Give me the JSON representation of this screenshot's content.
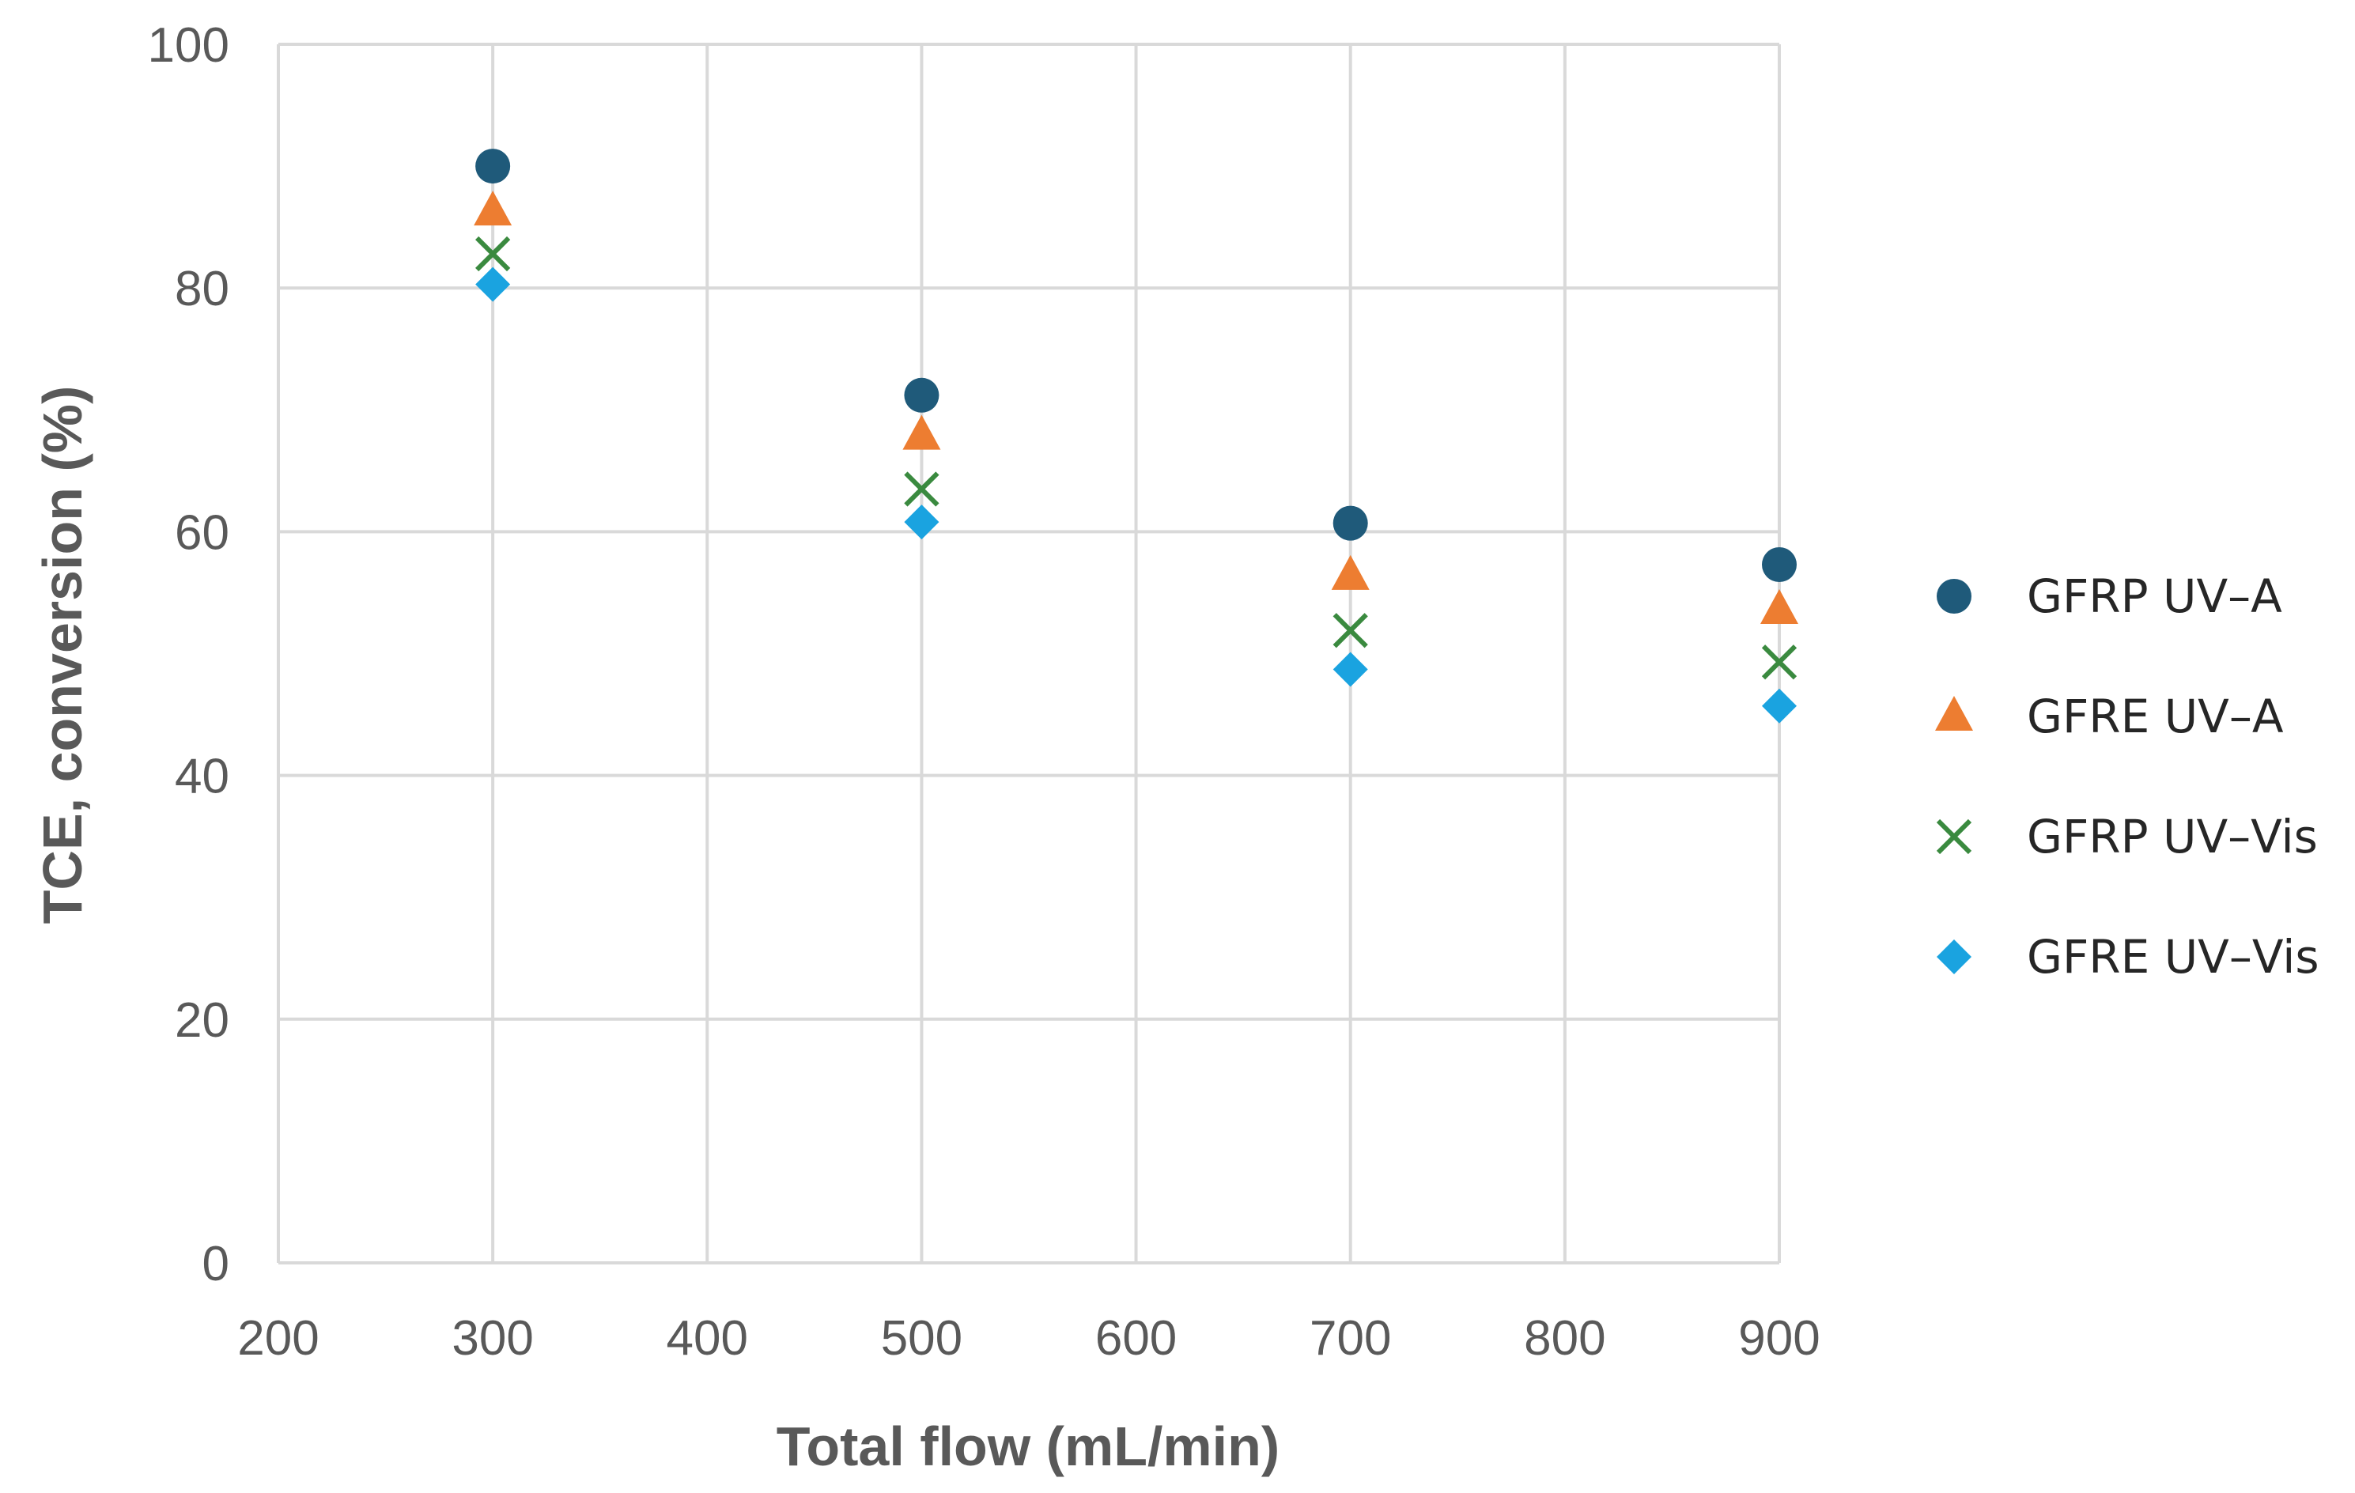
{
  "chart_data": {
    "type": "scatter",
    "xlabel": "Total flow (mL/min)",
    "ylabel": "TCE, conversion (%)",
    "xlim": [
      200,
      900
    ],
    "ylim": [
      0,
      100
    ],
    "xticks": [
      200,
      300,
      400,
      500,
      600,
      700,
      800,
      900
    ],
    "yticks": [
      0,
      20,
      40,
      60,
      80,
      100
    ],
    "x_tick_labels": [
      "200",
      "300",
      "400",
      "500",
      "600",
      "700",
      "800",
      "900"
    ],
    "y_tick_labels": [
      "0",
      "20",
      "40",
      "60",
      "80",
      "100"
    ],
    "grid": true,
    "legend_position": "right",
    "x": [
      300,
      500,
      700,
      900
    ],
    "series": [
      {
        "name": "GFRP UV–A",
        "marker": "circle",
        "color": "#1f5a7a",
        "values": [
          90.0,
          71.2,
          60.7,
          57.3
        ]
      },
      {
        "name": "GFRE UV–A",
        "marker": "triangle",
        "color": "#ed7d31",
        "values": [
          86.3,
          67.9,
          56.4,
          53.6
        ]
      },
      {
        "name": "GFRP UV–Vis",
        "marker": "x",
        "color": "#3a8a3f",
        "values": [
          82.8,
          63.5,
          51.9,
          49.3
        ]
      },
      {
        "name": "GFRE UV–Vis",
        "marker": "diamond",
        "color": "#1aa3e0",
        "values": [
          80.3,
          60.8,
          48.7,
          45.7
        ]
      }
    ]
  }
}
